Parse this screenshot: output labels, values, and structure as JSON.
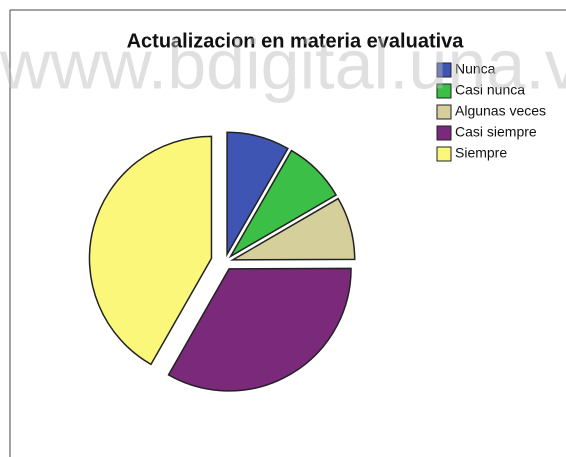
{
  "chart_data": {
    "type": "pie",
    "title": "Actualizacion en materia evaluativa",
    "watermark": "www.bdigital.una.v",
    "categories": [
      "Nunca",
      "Casi nunca",
      "Algunas veces",
      "Casi siempre",
      "Siempre"
    ],
    "values": [
      8.3,
      8.3,
      8.3,
      33.3,
      41.7
    ],
    "colors": [
      "#3f55b4",
      "#3cbf46",
      "#d4cf9b",
      "#7b2a7b",
      "#fbf77a"
    ],
    "legend": "top-right"
  }
}
